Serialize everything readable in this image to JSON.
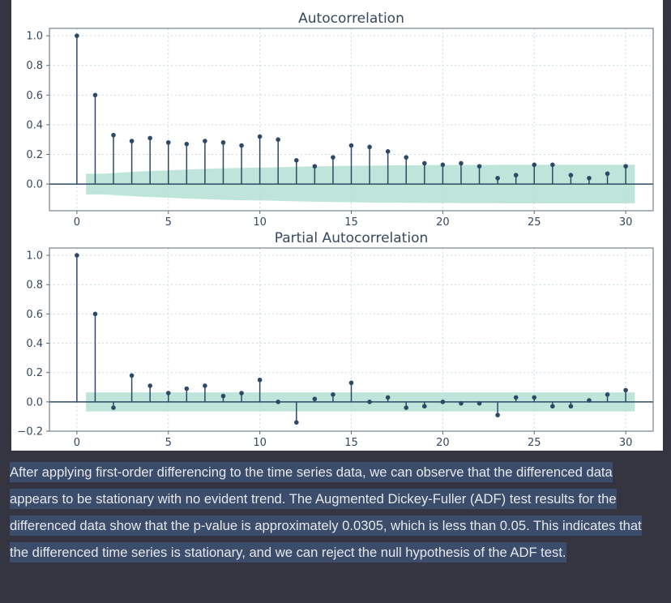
{
  "chart_data": [
    {
      "type": "stem",
      "title": "Autocorrelation",
      "xlim": [
        -1.5,
        31.5
      ],
      "ylim": [
        -0.18,
        1.05
      ],
      "xticks": [
        0,
        5,
        10,
        15,
        20,
        25,
        30
      ],
      "yticks": [
        "1.0",
        "0.8",
        "0.6",
        "0.4",
        "0.2",
        "0.0"
      ],
      "ytick_values": [
        1.0,
        0.8,
        0.6,
        0.4,
        0.2,
        0.0
      ],
      "grid": true,
      "confidence_band": {
        "x_range": [
          0.5,
          30.5
        ],
        "upper": [
          0.07,
          0.07,
          0.078,
          0.085,
          0.09,
          0.095,
          0.1,
          0.104,
          0.108,
          0.11,
          0.112,
          0.115,
          0.118,
          0.12,
          0.122,
          0.124,
          0.125,
          0.126,
          0.127,
          0.128,
          0.128,
          0.129,
          0.129,
          0.13,
          0.13,
          0.13,
          0.13,
          0.13,
          0.13,
          0.13,
          0.13
        ],
        "lower": [
          -0.07,
          -0.07,
          -0.078,
          -0.085,
          -0.09,
          -0.095,
          -0.1,
          -0.104,
          -0.108,
          -0.11,
          -0.112,
          -0.115,
          -0.118,
          -0.12,
          -0.122,
          -0.124,
          -0.125,
          -0.126,
          -0.127,
          -0.128,
          -0.128,
          -0.129,
          -0.129,
          -0.13,
          -0.13,
          -0.13,
          -0.13,
          -0.13,
          -0.13,
          -0.13,
          -0.13
        ]
      },
      "x": [
        0,
        1,
        2,
        3,
        4,
        5,
        6,
        7,
        8,
        9,
        10,
        11,
        12,
        13,
        14,
        15,
        16,
        17,
        18,
        19,
        20,
        21,
        22,
        23,
        24,
        25,
        26,
        27,
        28,
        29,
        30
      ],
      "values": [
        1.0,
        0.6,
        0.33,
        0.29,
        0.31,
        0.28,
        0.27,
        0.29,
        0.28,
        0.26,
        0.32,
        0.3,
        0.16,
        0.12,
        0.18,
        0.26,
        0.25,
        0.22,
        0.18,
        0.14,
        0.13,
        0.14,
        0.12,
        0.04,
        0.06,
        0.13,
        0.13,
        0.06,
        0.04,
        0.07,
        0.12
      ]
    },
    {
      "type": "stem",
      "title": "Partial Autocorrelation",
      "xlim": [
        -1.5,
        31.5
      ],
      "ylim": [
        -0.2,
        1.05
      ],
      "xticks": [
        0,
        5,
        10,
        15,
        20,
        25,
        30
      ],
      "yticks": [
        "1.0",
        "0.8",
        "0.6",
        "0.4",
        "0.2",
        "0.0",
        "−0.2"
      ],
      "ytick_values": [
        1.0,
        0.8,
        0.6,
        0.4,
        0.2,
        0.0,
        -0.2
      ],
      "grid": true,
      "confidence_band": {
        "x_range": [
          0.5,
          30.5
        ],
        "upper": [
          0.065
        ],
        "lower": [
          -0.065
        ]
      },
      "x": [
        0,
        1,
        2,
        3,
        4,
        5,
        6,
        7,
        8,
        9,
        10,
        11,
        12,
        13,
        14,
        15,
        16,
        17,
        18,
        19,
        20,
        21,
        22,
        23,
        24,
        25,
        26,
        27,
        28,
        29,
        30
      ],
      "values": [
        1.0,
        0.6,
        -0.04,
        0.18,
        0.11,
        0.06,
        0.09,
        0.11,
        0.04,
        0.06,
        0.15,
        0.0,
        -0.14,
        0.02,
        0.05,
        0.13,
        0.0,
        0.03,
        -0.04,
        -0.03,
        0.0,
        -0.01,
        -0.01,
        -0.09,
        0.03,
        0.03,
        -0.03,
        -0.03,
        0.01,
        0.05,
        0.08
      ]
    }
  ],
  "summary": {
    "text": "After applying first-order differencing to the time series data, we can observe that the differenced data appears to be stationary with no evident trend. The Augmented Dickey-Fuller (ADF) test results for the differenced data show that the p-value is approximately 0.0305, which is less than 0.05. This indicates that the differenced time series is stationary, and we can reject the null hypothesis of the ADF test."
  },
  "colors": {
    "stem": "#2c4a66",
    "band": "#a9dccf",
    "background": "#343541",
    "highlight": "#3c4d6c"
  }
}
